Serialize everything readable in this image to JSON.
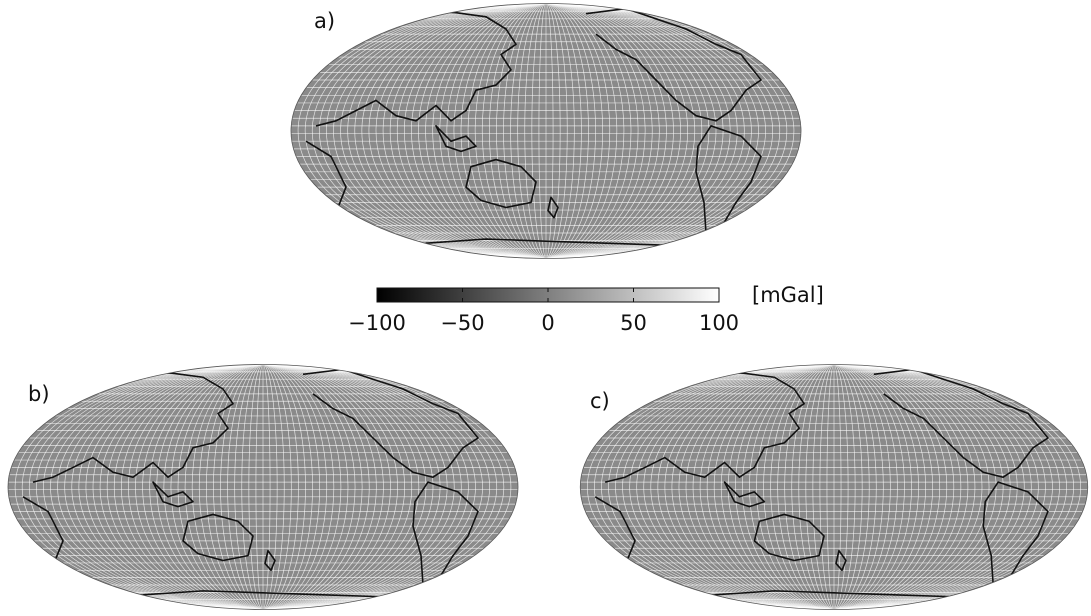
{
  "panels": [
    {
      "label": "a)"
    },
    {
      "label": "b)"
    },
    {
      "label": "c)"
    }
  ],
  "colorbar": {
    "label": "[mGal]",
    "lim": [
      -100,
      100
    ],
    "colors": [
      "#000000",
      "#ffffff"
    ],
    "ticks": [
      {
        "value": -100,
        "label": "−100"
      },
      {
        "value": -50,
        "label": "−50"
      },
      0,
      50,
      100
    ]
  }
}
